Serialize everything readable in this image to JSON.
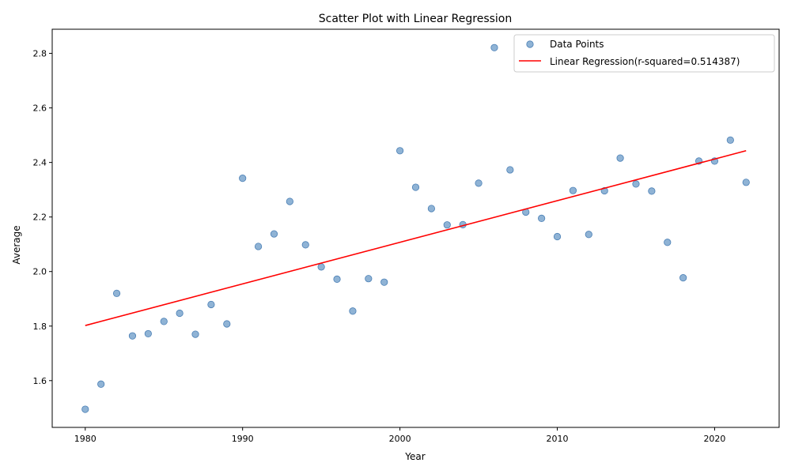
{
  "chart_data": {
    "type": "scatter",
    "title": "Scatter Plot with Linear Regression",
    "xlabel": "Year",
    "ylabel": "Average",
    "xlim": [
      1977.9,
      2024.1
    ],
    "ylim": [
      1.4285,
      2.8885
    ],
    "xticks": [
      1980,
      1990,
      2000,
      2010,
      2020
    ],
    "yticks": [
      1.6,
      1.8,
      2.0,
      2.2,
      2.4,
      2.6,
      2.8
    ],
    "ytick_labels": [
      "1.6",
      "1.8",
      "2.0",
      "2.2",
      "2.4",
      "2.6",
      "2.8"
    ],
    "grid": false,
    "legend_position": "top-right",
    "colors": {
      "points": "#6a9ac7",
      "points_edge": "#4a7fb5",
      "line": "#ff0000"
    },
    "series": [
      {
        "name": "Data Points",
        "kind": "scatter",
        "x": [
          1980,
          1981,
          1982,
          1983,
          1984,
          1985,
          1986,
          1987,
          1988,
          1989,
          1990,
          1991,
          1992,
          1993,
          1994,
          1995,
          1996,
          1997,
          1998,
          1999,
          2000,
          2001,
          2002,
          2003,
          2004,
          2005,
          2006,
          2007,
          2008,
          2009,
          2010,
          2011,
          2012,
          2013,
          2014,
          2015,
          2016,
          2017,
          2018,
          2019,
          2020,
          2021,
          2022
        ],
        "y": [
          1.495,
          1.587,
          1.92,
          1.764,
          1.772,
          1.817,
          1.847,
          1.77,
          1.879,
          1.808,
          2.342,
          2.092,
          2.138,
          2.257,
          2.098,
          2.017,
          1.972,
          1.855,
          1.974,
          1.961,
          2.443,
          2.309,
          2.231,
          2.171,
          2.172,
          2.324,
          2.821,
          2.373,
          2.218,
          2.195,
          2.128,
          2.297,
          2.136,
          2.296,
          2.416,
          2.321,
          2.295,
          2.107,
          1.977,
          2.405,
          2.405,
          2.482,
          2.327
        ]
      },
      {
        "name": "Linear Regression(r-squared=0.514387)",
        "kind": "line",
        "x": [
          1980,
          2022
        ],
        "y": [
          1.802,
          2.443
        ]
      }
    ]
  }
}
